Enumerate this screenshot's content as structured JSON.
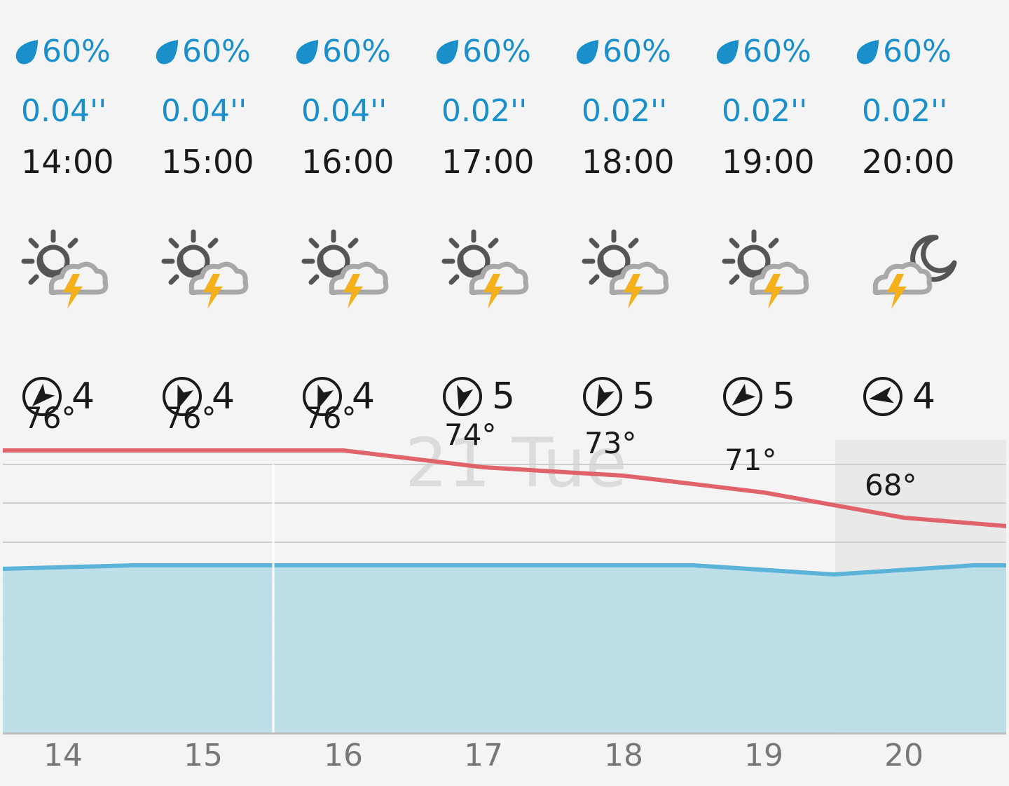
{
  "colors": {
    "precip_blue": "#1a8fc9",
    "temp_line": "#e0636b",
    "area_fill": "#bcdde7",
    "area_line": "#5cb3d9",
    "sun": "#555555",
    "cloud": "#a8a8a8",
    "bolt": "#f5b01c",
    "night_shade": "#e4e4e4"
  },
  "day_label": "21 Tue",
  "hours": [
    {
      "precip_prob": "60%",
      "precip_amount": "0.04''",
      "time": "14:00",
      "icon": "partly-sunny-thunderstorm-icon",
      "wind_dir_deg": 225,
      "wind_speed": "4",
      "temp": "76°",
      "axis": "14"
    },
    {
      "precip_prob": "60%",
      "precip_amount": "0.04''",
      "time": "15:00",
      "icon": "partly-sunny-thunderstorm-icon",
      "wind_dir_deg": 200,
      "wind_speed": "4",
      "temp": "76°",
      "axis": "15"
    },
    {
      "precip_prob": "60%",
      "precip_amount": "0.04''",
      "time": "16:00",
      "icon": "partly-sunny-thunderstorm-icon",
      "wind_dir_deg": 200,
      "wind_speed": "4",
      "temp": "76°",
      "axis": "16"
    },
    {
      "precip_prob": "60%",
      "precip_amount": "0.02''",
      "time": "17:00",
      "icon": "partly-sunny-thunderstorm-icon",
      "wind_dir_deg": 195,
      "wind_speed": "5",
      "temp": "74°",
      "axis": "17"
    },
    {
      "precip_prob": "60%",
      "precip_amount": "0.02''",
      "time": "18:00",
      "icon": "partly-sunny-thunderstorm-icon",
      "wind_dir_deg": 205,
      "wind_speed": "5",
      "temp": "73°",
      "axis": "18"
    },
    {
      "precip_prob": "60%",
      "precip_amount": "0.02''",
      "time": "19:00",
      "icon": "partly-sunny-thunderstorm-icon",
      "wind_dir_deg": 230,
      "wind_speed": "5",
      "temp": "71°",
      "axis": "19"
    },
    {
      "precip_prob": "60%",
      "precip_amount": "0.02''",
      "time": "20:00",
      "icon": "night-thunderstorm-icon",
      "wind_dir_deg": 260,
      "wind_speed": "4",
      "temp": "68°",
      "axis": "20"
    }
  ],
  "chart_data": {
    "type": "line",
    "x": [
      14,
      15,
      16,
      17,
      18,
      19,
      20
    ],
    "series": [
      {
        "values": [
          76,
          76,
          76,
          74,
          73,
          71,
          68
        ]
      }
    ]
  }
}
